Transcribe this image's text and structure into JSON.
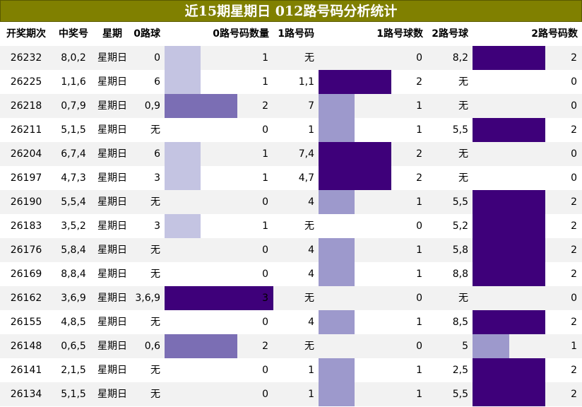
{
  "title": "近15期星期日 012路号码分析统计",
  "headers": {
    "issue": "开奖期次",
    "winning": "中奖号",
    "weekday": "星期",
    "r0_balls": "0路球",
    "r0_count": "0路号码数量",
    "r1_balls": "1路号码",
    "r1_count": "1路号球数",
    "r2_balls": "2路号球",
    "r2_count": "2路号码数"
  },
  "colors": {
    "title_bg": "#808000",
    "level1": "#c4c4e2",
    "level1_r1": "#9d99cc",
    "level1_r2": "#9d99cc",
    "level2": "#7b6eb4",
    "level3": "#3e007a"
  },
  "chart_data": {
    "type": "table",
    "title": "近15期星期日 012路号码分析统计",
    "columns": [
      "开奖期次",
      "中奖号",
      "星期",
      "0路球",
      "0路号码数量",
      "1路号码",
      "1路号球数",
      "2路号球",
      "2路号码数"
    ],
    "rows": [
      [
        "26232",
        "8,0,2",
        "星期日",
        "0",
        1,
        "无",
        0,
        "8,2",
        2
      ],
      [
        "26225",
        "1,1,6",
        "星期日",
        "6",
        1,
        "1,1",
        2,
        "无",
        0
      ],
      [
        "26218",
        "0,7,9",
        "星期日",
        "0,9",
        2,
        "7",
        1,
        "无",
        0
      ],
      [
        "26211",
        "5,1,5",
        "星期日",
        "无",
        0,
        "1",
        1,
        "5,5",
        2
      ],
      [
        "26204",
        "6,7,4",
        "星期日",
        "6",
        1,
        "7,4",
        2,
        "无",
        0
      ],
      [
        "26197",
        "4,7,3",
        "星期日",
        "3",
        1,
        "4,7",
        2,
        "无",
        0
      ],
      [
        "26190",
        "5,5,4",
        "星期日",
        "无",
        0,
        "4",
        1,
        "5,5",
        2
      ],
      [
        "26183",
        "3,5,2",
        "星期日",
        "3",
        1,
        "无",
        0,
        "5,2",
        2
      ],
      [
        "26176",
        "5,8,4",
        "星期日",
        "无",
        0,
        "4",
        1,
        "5,8",
        2
      ],
      [
        "26169",
        "8,8,4",
        "星期日",
        "无",
        0,
        "4",
        1,
        "8,8",
        2
      ],
      [
        "26162",
        "3,6,9",
        "星期日",
        "3,6,9",
        3,
        "无",
        0,
        "无",
        0
      ],
      [
        "26155",
        "4,8,5",
        "星期日",
        "无",
        0,
        "4",
        1,
        "8,5",
        2
      ],
      [
        "26148",
        "0,6,5",
        "星期日",
        "0,6",
        2,
        "无",
        0,
        "5",
        1
      ],
      [
        "26141",
        "2,1,5",
        "星期日",
        "无",
        0,
        "1",
        1,
        "2,5",
        2
      ],
      [
        "26134",
        "5,1,5",
        "星期日",
        "无",
        0,
        "1",
        1,
        "5,5",
        2
      ]
    ],
    "count_max": 3
  }
}
